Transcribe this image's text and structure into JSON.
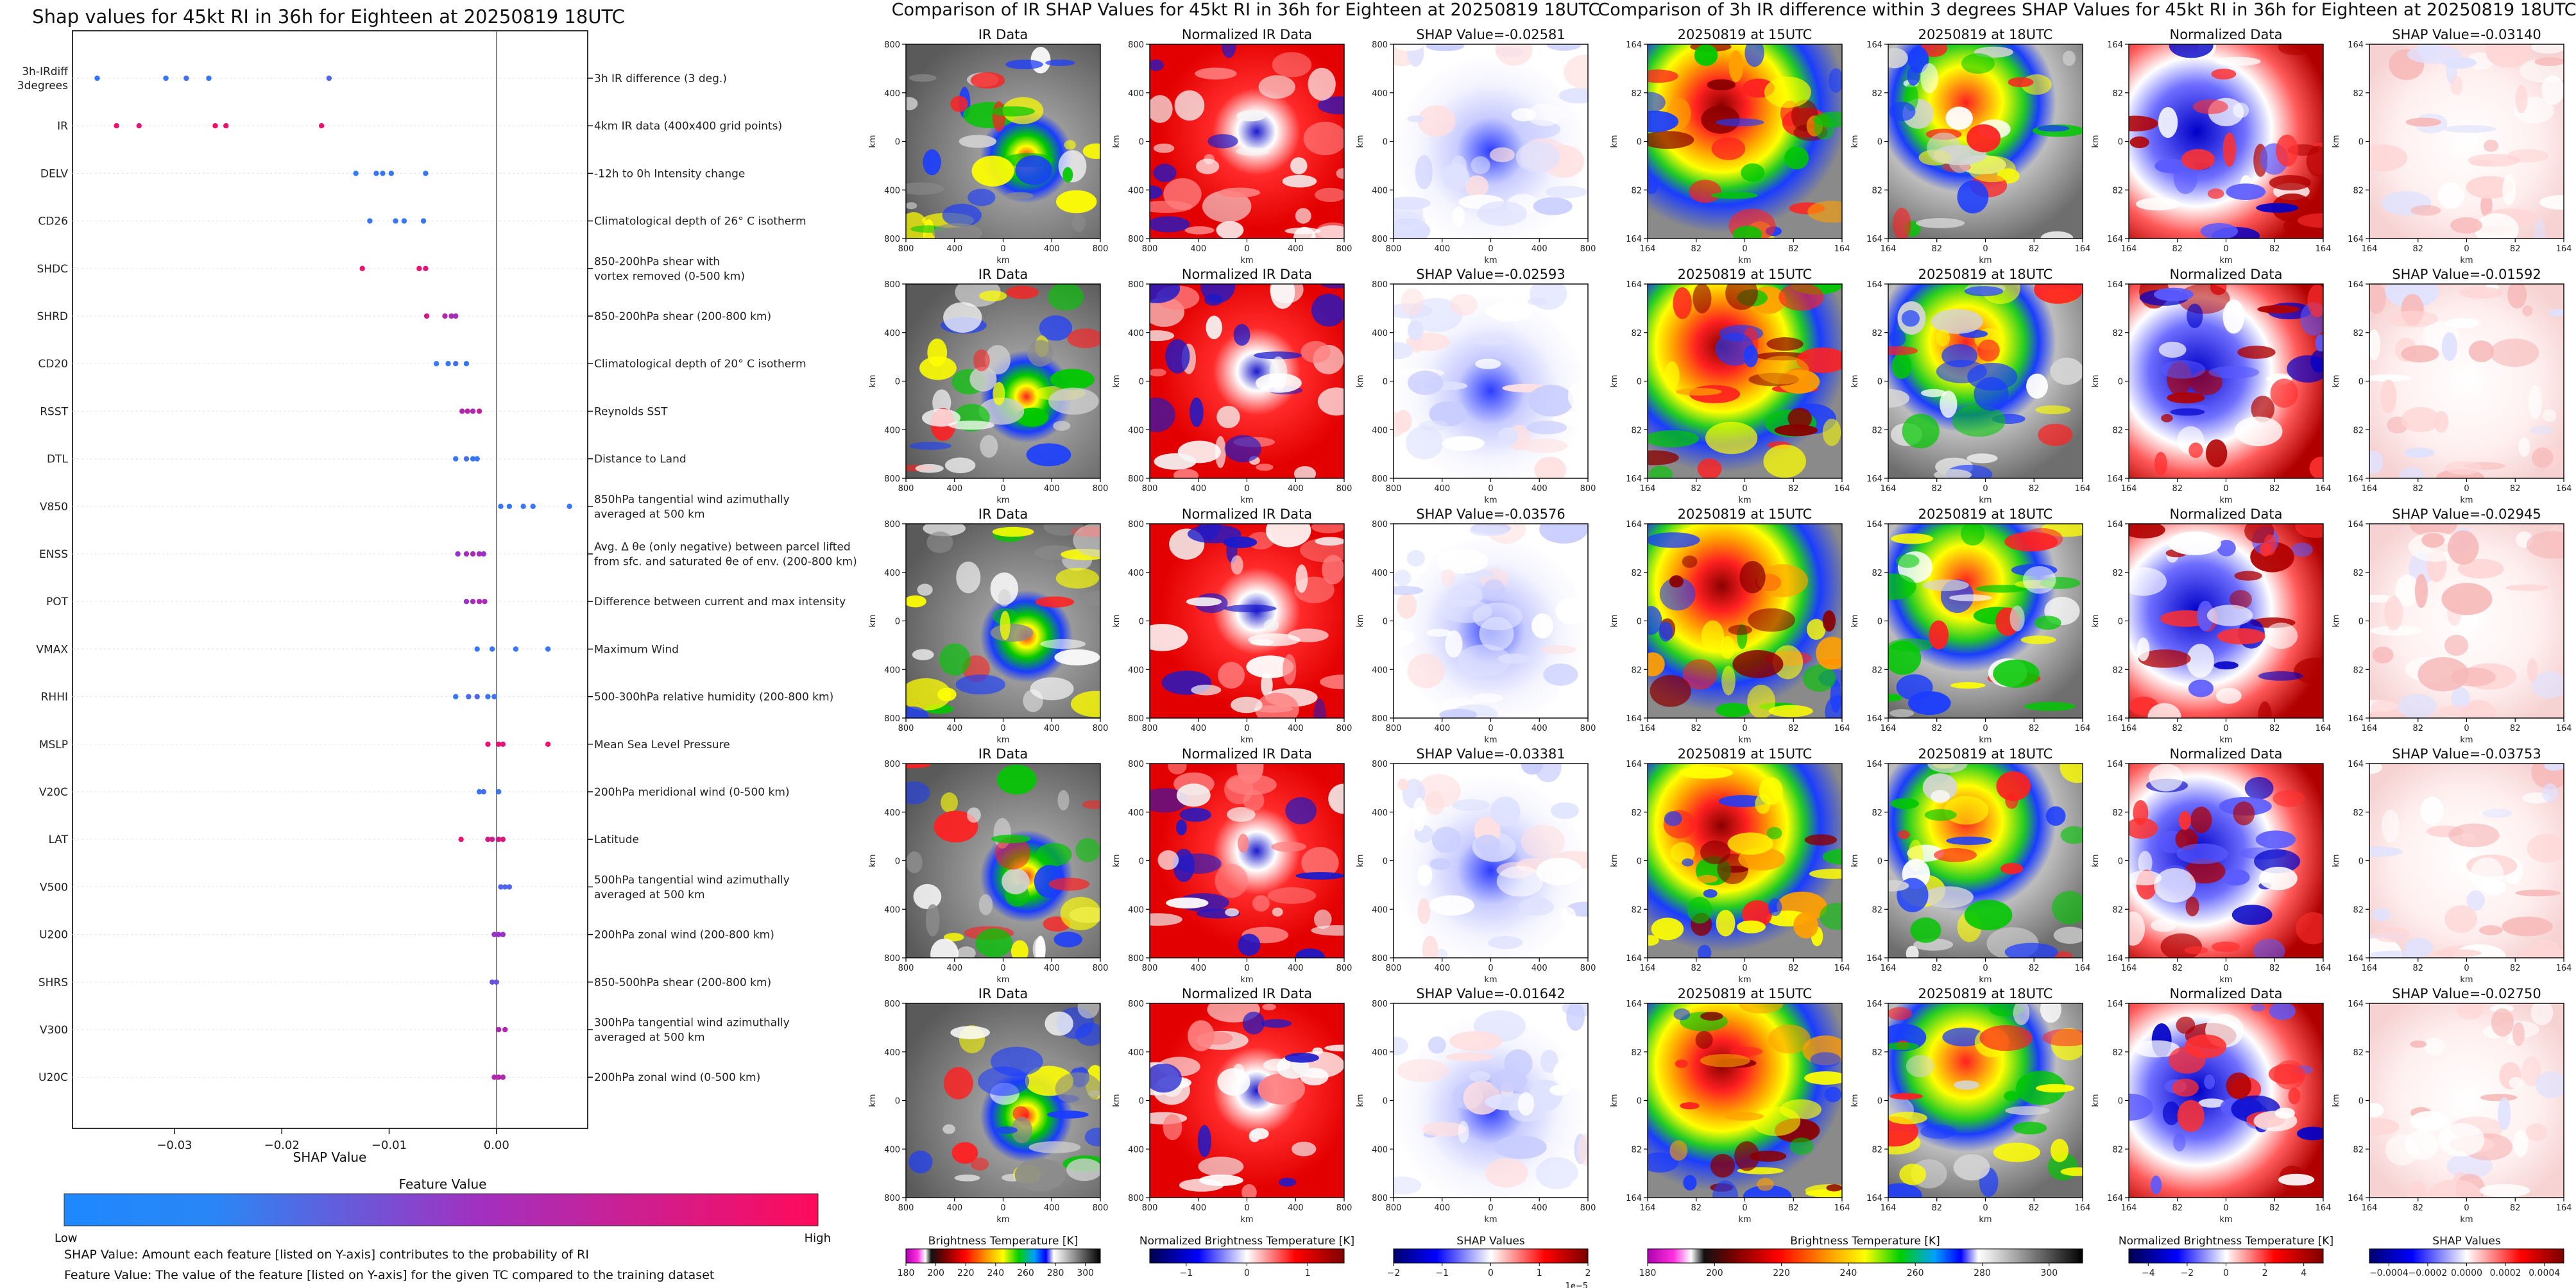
{
  "left_chart": {
    "title": "Shap values for 45kt RI in 36h for Eighteen at 20250819 18UTC",
    "xlabel": "SHAP Value",
    "xticks": [
      "−0.03",
      "−0.02",
      "−0.01",
      "0.00"
    ],
    "xtick_values": [
      -0.03,
      -0.02,
      -0.01,
      0.0
    ],
    "xlim": [
      -0.0395,
      0.0085
    ],
    "colorbar_title": "Feature Value",
    "colorbar_low": "Low",
    "colorbar_high": "High",
    "colors": {
      "low": "#1e88ff",
      "mid": "#9b30c8",
      "high": "#ff0a5a"
    },
    "note1": "SHAP Value: Amount each feature [listed on Y-axis] contributes to the probability of RI",
    "note2": "Feature Value: The value of the feature [listed on Y-axis] for the given TC compared to the training dataset"
  },
  "chart_data": [
    {
      "type": "scatter",
      "title": "Shap values for 45kt RI in 36h for Eighteen at 20250819 18UTC",
      "xlabel": "SHAP Value",
      "ylabel": "",
      "xlim": [
        -0.0395,
        0.0085
      ],
      "series": [
        {
          "name": "3h-IRdiff 3degrees",
          "description": "3h IR difference (3 deg.)",
          "values": [
            -0.0372,
            -0.0308,
            -0.0289,
            -0.0268,
            -0.0156
          ],
          "levels": [
            0.1,
            0.1,
            0.15,
            0.1,
            0.2
          ]
        },
        {
          "name": "IR",
          "description": "4km IR data (400x400 grid points)",
          "values": [
            -0.0354,
            -0.0333,
            -0.0262,
            -0.0252,
            -0.0163
          ],
          "levels": [
            0.9,
            0.85,
            0.95,
            0.9,
            0.9
          ]
        },
        {
          "name": "DELV",
          "description": "-12h to 0h Intensity change",
          "values": [
            -0.0131,
            -0.0112,
            -0.0106,
            -0.0098,
            -0.0066
          ],
          "levels": [
            0.05,
            0.1,
            0.1,
            0.1,
            0.1
          ]
        },
        {
          "name": "CD26",
          "description": "Climatological depth of 26° C isotherm",
          "values": [
            -0.0118,
            -0.0094,
            -0.0086,
            -0.0068
          ],
          "levels": [
            0.1,
            0.1,
            0.1,
            0.1
          ]
        },
        {
          "name": "SHDC",
          "description": "850-200hPa shear with\nvortex removed (0-500 km)",
          "values": [
            -0.0125,
            -0.0072,
            -0.0066
          ],
          "levels": [
            0.9,
            0.9,
            0.85
          ]
        },
        {
          "name": "SHRD",
          "description": "850-200hPa shear (200-800 km)",
          "values": [
            -0.0065,
            -0.0048,
            -0.0042,
            -0.0038
          ],
          "levels": [
            0.8,
            0.6,
            0.6,
            0.55
          ]
        },
        {
          "name": "CD20",
          "description": "Climatological depth of 20° C isotherm",
          "values": [
            -0.0056,
            -0.0045,
            -0.0038,
            -0.0028
          ],
          "levels": [
            0.1,
            0.1,
            0.15,
            0.1
          ]
        },
        {
          "name": "RSST",
          "description": "Reynolds SST",
          "values": [
            -0.0032,
            -0.0027,
            -0.0022,
            -0.0016
          ],
          "levels": [
            0.6,
            0.65,
            0.6,
            0.7
          ]
        },
        {
          "name": "DTL",
          "description": "Distance to Land",
          "values": [
            -0.0038,
            -0.0028,
            -0.0022,
            -0.0018
          ],
          "levels": [
            0.1,
            0.15,
            0.1,
            0.1
          ]
        },
        {
          "name": "V850",
          "description": "850hPa tangential wind azimuthally\naveraged at 500 km",
          "values": [
            0.0004,
            0.0012,
            0.0025,
            0.0034,
            0.0068
          ],
          "levels": [
            0.1,
            0.1,
            0.1,
            0.1,
            0.1
          ]
        },
        {
          "name": "ENSS",
          "description": "Avg. Δ θe (only negative) between parcel lifted\nfrom sfc. and saturated θe of env. (200-800 km)",
          "values": [
            -0.0036,
            -0.0028,
            -0.0022,
            -0.0016,
            -0.0012
          ],
          "levels": [
            0.5,
            0.55,
            0.6,
            0.55,
            0.5
          ]
        },
        {
          "name": "POT",
          "description": "Difference between current and max intensity",
          "values": [
            -0.0028,
            -0.0022,
            -0.0016,
            -0.0011
          ],
          "levels": [
            0.5,
            0.55,
            0.6,
            0.55
          ]
        },
        {
          "name": "VMAX",
          "description": "Maximum Wind",
          "values": [
            -0.0018,
            -0.0004,
            0.0018,
            0.0048
          ],
          "levels": [
            0.1,
            0.1,
            0.1,
            0.1
          ]
        },
        {
          "name": "RHHI",
          "description": "500-300hPa relative humidity (200-800 km)",
          "values": [
            -0.0038,
            -0.0026,
            -0.0018,
            -0.0008,
            -0.0002
          ],
          "levels": [
            0.1,
            0.15,
            0.2,
            0.1,
            0.1
          ]
        },
        {
          "name": "MSLP",
          "description": "Mean Sea Level Pressure",
          "values": [
            -0.0008,
            0.0002,
            0.0006,
            0.0048
          ],
          "levels": [
            0.9,
            0.9,
            0.85,
            0.9
          ]
        },
        {
          "name": "V20C",
          "description": "200hPa meridional wind (0-500 km)",
          "values": [
            -0.0016,
            -0.0012,
            0.0002
          ],
          "levels": [
            0.1,
            0.15,
            0.1
          ]
        },
        {
          "name": "LAT",
          "description": "Latitude",
          "values": [
            -0.0033,
            -0.0008,
            -0.0004,
            0.0002,
            0.0006
          ],
          "levels": [
            0.9,
            0.8,
            0.75,
            0.8,
            0.85
          ]
        },
        {
          "name": "V500",
          "description": "500hPa tangential wind azimuthally\naveraged at 500 km",
          "values": [
            0.0004,
            0.0008,
            0.0012
          ],
          "levels": [
            0.2,
            0.2,
            0.2
          ]
        },
        {
          "name": "U200",
          "description": "200hPa zonal wind (200-800 km)",
          "values": [
            -0.0002,
            0.0002,
            0.0006
          ],
          "levels": [
            0.5,
            0.5,
            0.5
          ]
        },
        {
          "name": "SHRS",
          "description": "850-500hPa shear (200-800 km)",
          "values": [
            -0.0004,
            0.0
          ],
          "levels": [
            0.3,
            0.3
          ]
        },
        {
          "name": "V300",
          "description": "300hPa tangential wind azimuthally\naveraged at 500 km",
          "values": [
            0.0002,
            0.0008
          ],
          "levels": [
            0.6,
            0.6
          ]
        },
        {
          "name": "U20C",
          "description": "200hPa zonal wind (0-500 km)",
          "values": [
            -0.0002,
            0.0002,
            0.0006
          ],
          "levels": [
            0.6,
            0.65,
            0.6
          ]
        }
      ]
    },
    {
      "type": "heatmap",
      "title": "Comparison of IR SHAP Values for 45kt RI in 36h for Eighteen at 20250819 18UTC",
      "columns": [
        "IR Data",
        "Normalized IR Data"
      ],
      "shap_titles": [
        "SHAP Value=-0.02581",
        "SHAP Value=-0.02593",
        "SHAP Value=-0.03576",
        "SHAP Value=-0.03381",
        "SHAP Value=-0.01642"
      ],
      "xlabel": "km",
      "ylabel": "km",
      "xticks": [
        "800",
        "400",
        "0",
        "400",
        "800"
      ],
      "yticks": [
        "800",
        "400",
        "0",
        "400",
        "800"
      ],
      "colorbars": [
        {
          "label": "Brightness Temperature [K]",
          "ticks": [
            "180",
            "200",
            "220",
            "240",
            "260",
            "280",
            "300"
          ],
          "range": [
            180,
            310
          ]
        },
        {
          "label": "Normalized Brightness Temperature [K]",
          "ticks": [
            "−1",
            "0",
            "1"
          ],
          "range": [
            -1.6,
            1.6
          ]
        },
        {
          "label": "SHAP Values",
          "ticks": [
            "−2",
            "−1",
            "0",
            "1",
            "2"
          ],
          "range": [
            -2,
            2
          ],
          "scale": "1e−5"
        }
      ]
    },
    {
      "type": "heatmap",
      "title": "Comparison of 3h IR difference within 3 degrees SHAP Values for 45kt RI in 36h for Eighteen at 20250819 18UTC",
      "columns": [
        "20250819 at 15UTC",
        "20250819 at 18UTC",
        "Normalized Data"
      ],
      "shap_titles": [
        "SHAP Value=-0.03140",
        "SHAP Value=-0.01592",
        "SHAP Value=-0.02945",
        "SHAP Value=-0.03753",
        "SHAP Value=-0.02750"
      ],
      "xlabel": "km",
      "ylabel": "km",
      "xticks": [
        "164",
        "82",
        "0",
        "82",
        "164"
      ],
      "yticks": [
        "164",
        "82",
        "0",
        "82",
        "164"
      ],
      "colorbars": [
        {
          "label": "Brightness Temperature [K]",
          "ticks": [
            "180",
            "200",
            "220",
            "240",
            "260",
            "280",
            "300"
          ],
          "range": [
            180,
            310
          ]
        },
        {
          "label": "Normalized Brightness Temperature [K]",
          "ticks": [
            "−4",
            "−2",
            "0",
            "2",
            "4"
          ],
          "range": [
            -5,
            5
          ]
        },
        {
          "label": "SHAP Values",
          "ticks": [
            "−0.0004",
            "−0.0002",
            "0.0000",
            "0.0002",
            "0.0004"
          ],
          "range": [
            -0.0005,
            0.0005
          ]
        }
      ]
    }
  ]
}
